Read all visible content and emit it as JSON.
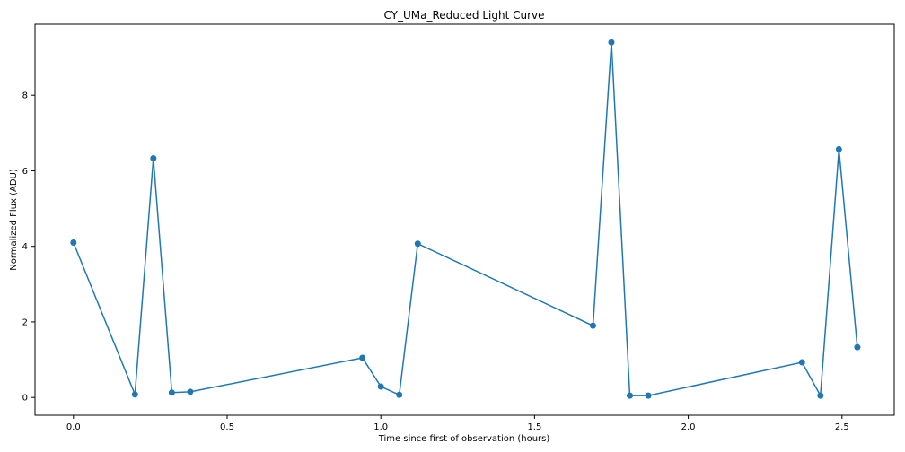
{
  "chart_data": {
    "type": "line",
    "title": "CY_UMa_Reduced Light Curve",
    "xlabel": "Time since first of observation (hours)",
    "ylabel": "Normalized Flux (ADU)",
    "xlim": [
      -0.125,
      2.67
    ],
    "ylim": [
      -0.47,
      9.88
    ],
    "xticks": [
      0.0,
      0.5,
      1.0,
      1.5,
      2.0,
      2.5
    ],
    "xtick_labels": [
      "0.0",
      "0.5",
      "1.0",
      "1.5",
      "2.0",
      "2.5"
    ],
    "yticks": [
      0,
      2,
      4,
      6,
      8
    ],
    "ytick_labels": [
      "0",
      "2",
      "4",
      "6",
      "8"
    ],
    "grid": false,
    "marker": "circle",
    "color": "#1f77b4",
    "series": [
      {
        "x": [
          0.0,
          0.2,
          0.26,
          0.32,
          0.38,
          0.94,
          1.0,
          1.06,
          1.12,
          1.69,
          1.75,
          1.81,
          1.87,
          2.37,
          2.43,
          2.49,
          2.55
        ],
        "y": [
          4.1,
          0.08,
          6.33,
          0.13,
          0.15,
          1.05,
          0.29,
          0.07,
          4.07,
          1.9,
          9.4,
          0.05,
          0.05,
          0.93,
          0.05,
          6.57,
          1.33
        ]
      }
    ]
  }
}
